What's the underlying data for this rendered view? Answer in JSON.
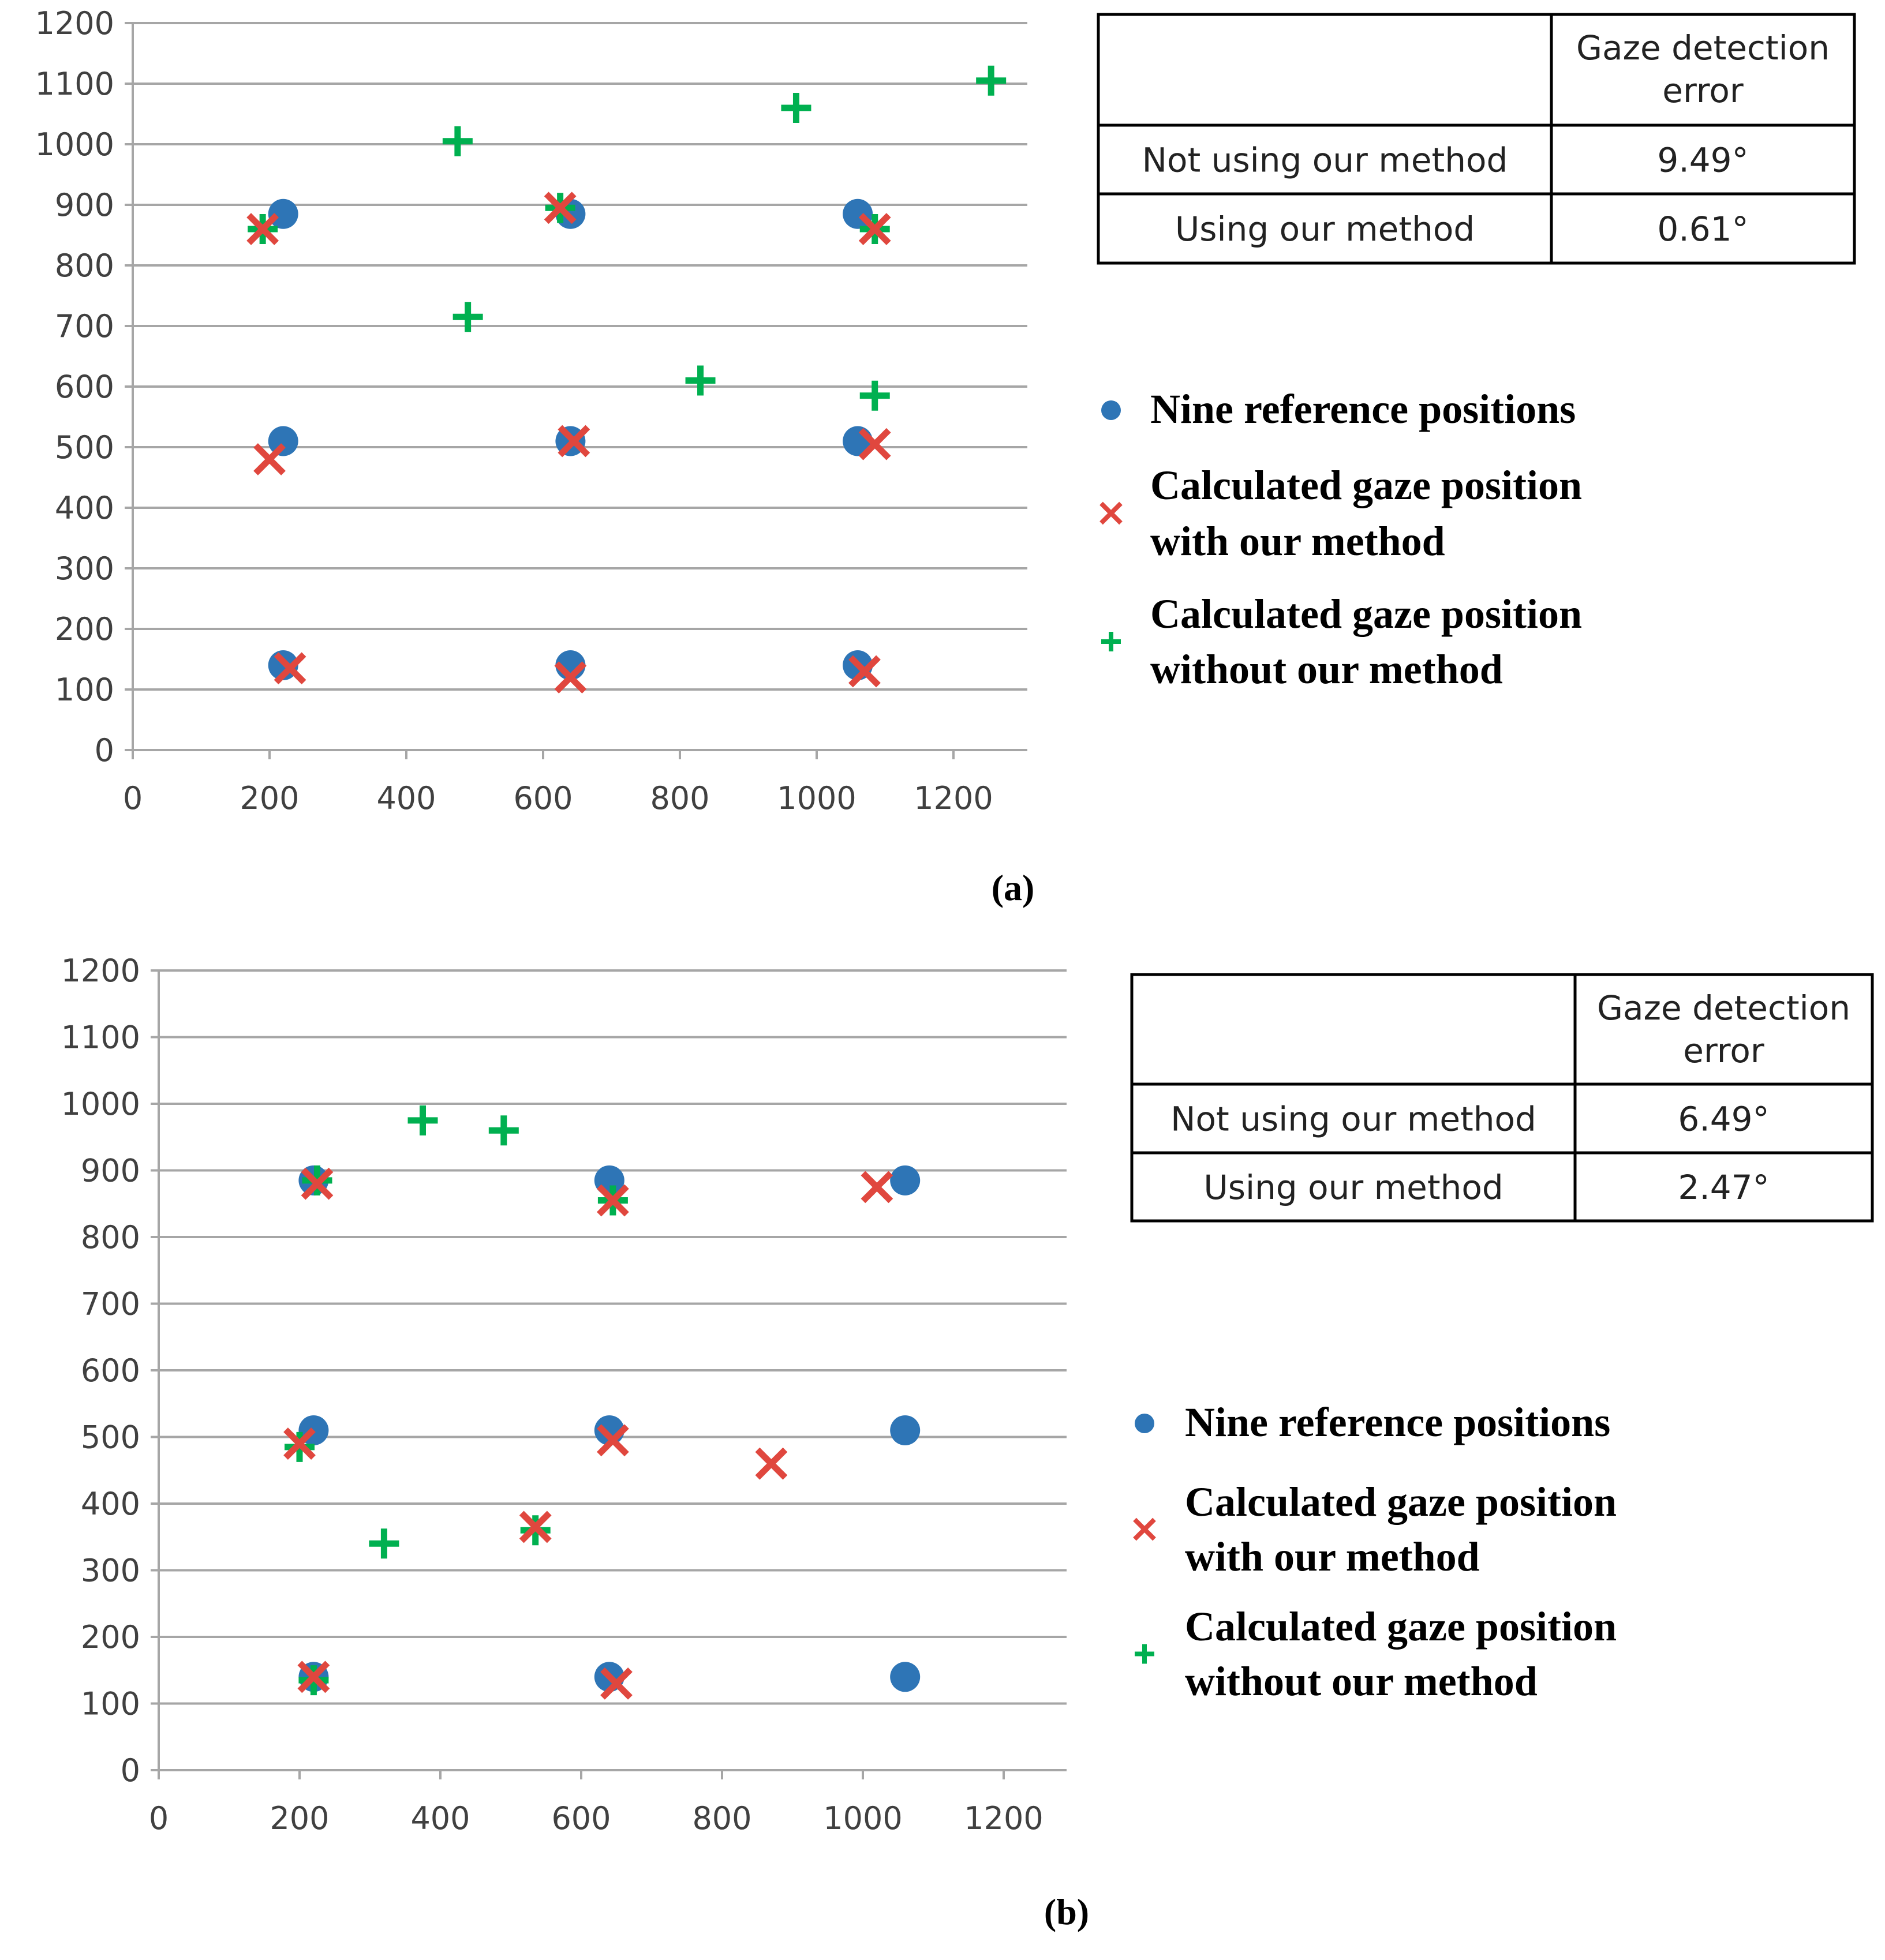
{
  "figure": {
    "colors": {
      "reference": "#2e75b6",
      "with_method": "#e0473e",
      "without_method": "#00b050"
    }
  },
  "chart_data": [
    {
      "type": "scatter",
      "panel_label": "(a)",
      "xlim": [
        0,
        1300
      ],
      "ylim": [
        0,
        1200
      ],
      "x_ticks": [
        "0",
        "200",
        "400",
        "600",
        "800",
        "1000",
        "1200"
      ],
      "y_ticks": [
        "0",
        "100",
        "200",
        "300",
        "400",
        "500",
        "600",
        "700",
        "800",
        "900",
        "1000",
        "1100",
        "1200"
      ],
      "grid": "horizontal",
      "series": [
        {
          "name": "Nine reference positions",
          "marker": "circle",
          "points": [
            [
              220,
              885
            ],
            [
              640,
              885
            ],
            [
              1060,
              885
            ],
            [
              220,
              510
            ],
            [
              640,
              510
            ],
            [
              1060,
              510
            ],
            [
              220,
              140
            ],
            [
              640,
              140
            ],
            [
              1060,
              140
            ]
          ]
        },
        {
          "name": "Calculated gaze position with our method",
          "marker": "x",
          "points": [
            [
              190,
              860
            ],
            [
              625,
              895
            ],
            [
              1085,
              860
            ],
            [
              200,
              480
            ],
            [
              645,
              510
            ],
            [
              1085,
              505
            ],
            [
              230,
              135
            ],
            [
              640,
              120
            ],
            [
              1070,
              130
            ]
          ]
        },
        {
          "name": "Calculated gaze position without our method",
          "marker": "plus",
          "points": [
            [
              190,
              860
            ],
            [
              475,
              1005
            ],
            [
              970,
              1060
            ],
            [
              1255,
              1105
            ],
            [
              490,
              715
            ],
            [
              830,
              610
            ],
            [
              1085,
              585
            ],
            [
              1085,
              860
            ],
            [
              625,
              895
            ]
          ]
        }
      ],
      "legend": {
        "position": "right",
        "entries": [
          {
            "lines": [
              "Nine reference positions"
            ]
          },
          {
            "lines": [
              "Calculated gaze position",
              "with our method"
            ]
          },
          {
            "lines": [
              "Calculated gaze position",
              "without our method"
            ]
          }
        ]
      },
      "table": {
        "header": [
          "",
          "Gaze detection error"
        ],
        "header_lines": [
          "Gaze detection",
          "error"
        ],
        "rows": [
          [
            "Not using our method",
            "9.49°"
          ],
          [
            "Using our method",
            "0.61°"
          ]
        ]
      }
    },
    {
      "type": "scatter",
      "panel_label": "(b)",
      "xlim": [
        0,
        1300
      ],
      "ylim": [
        0,
        1200
      ],
      "x_ticks": [
        "0",
        "200",
        "400",
        "600",
        "800",
        "1000",
        "1200"
      ],
      "y_ticks": [
        "0",
        "100",
        "200",
        "300",
        "400",
        "500",
        "600",
        "700",
        "800",
        "900",
        "1000",
        "1100",
        "1200"
      ],
      "grid": "horizontal",
      "series": [
        {
          "name": "Nine reference positions",
          "marker": "circle",
          "points": [
            [
              220,
              885
            ],
            [
              640,
              885
            ],
            [
              1060,
              885
            ],
            [
              220,
              510
            ],
            [
              640,
              510
            ],
            [
              1060,
              510
            ],
            [
              220,
              140
            ],
            [
              640,
              140
            ],
            [
              1060,
              140
            ]
          ]
        },
        {
          "name": "Calculated gaze position with our method",
          "marker": "x",
          "points": [
            [
              225,
              880
            ],
            [
              645,
              855
            ],
            [
              1020,
              875
            ],
            [
              200,
              490
            ],
            [
              645,
              495
            ],
            [
              870,
              460
            ],
            [
              535,
              365
            ],
            [
              220,
              140
            ],
            [
              650,
              130
            ]
          ]
        },
        {
          "name": "Calculated gaze position without our method",
          "marker": "plus",
          "points": [
            [
              225,
              885
            ],
            [
              375,
              975
            ],
            [
              490,
              960
            ],
            [
              645,
              855
            ],
            [
              200,
              485
            ],
            [
              320,
              340
            ],
            [
              535,
              360
            ],
            [
              220,
              135
            ]
          ]
        }
      ],
      "legend": {
        "position": "right",
        "entries": [
          {
            "lines": [
              "Nine reference positions"
            ]
          },
          {
            "lines": [
              "Calculated gaze position",
              "with our method"
            ]
          },
          {
            "lines": [
              "Calculated gaze position",
              "without our method"
            ]
          }
        ]
      },
      "table": {
        "header": [
          "",
          "Gaze detection error"
        ],
        "header_lines": [
          "Gaze detection",
          "error"
        ],
        "rows": [
          [
            "Not using our method",
            "6.49°"
          ],
          [
            "Using our method",
            "2.47°"
          ]
        ]
      }
    }
  ]
}
